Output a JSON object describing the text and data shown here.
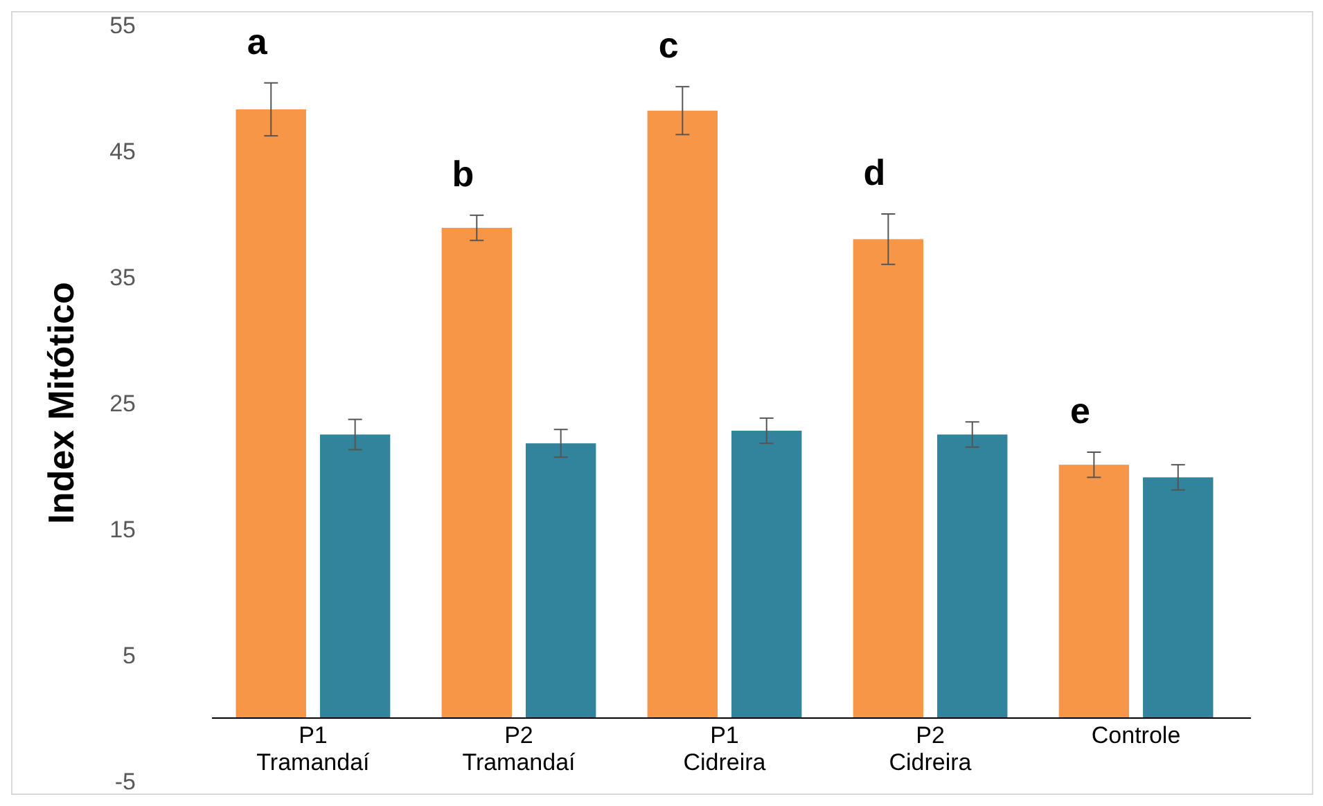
{
  "chart_data": {
    "type": "bar",
    "ylabel": "Index Mitótico",
    "categories": [
      "P1 Tramandaí",
      "P2 Tramandaí",
      "P1 Cidreira",
      "P2 Cidreira",
      "Controle"
    ],
    "series": [
      {
        "color": "#f79646",
        "values": [
          48.3,
          38.9,
          48.2,
          38.0,
          20.1
        ],
        "errors": [
          2.1,
          1.0,
          1.9,
          2.0,
          1.0
        ]
      },
      {
        "color": "#31849b",
        "values": [
          22.5,
          21.8,
          22.8,
          22.5,
          19.1
        ],
        "errors": [
          1.2,
          1.1,
          1.0,
          1.0,
          1.0
        ]
      }
    ],
    "ylim": [
      -5,
      55
    ],
    "yticks": [
      -5,
      5,
      15,
      25,
      35,
      45,
      55
    ],
    "grid": false,
    "annotations": [
      "a",
      "b",
      "c",
      "d",
      "e"
    ]
  }
}
